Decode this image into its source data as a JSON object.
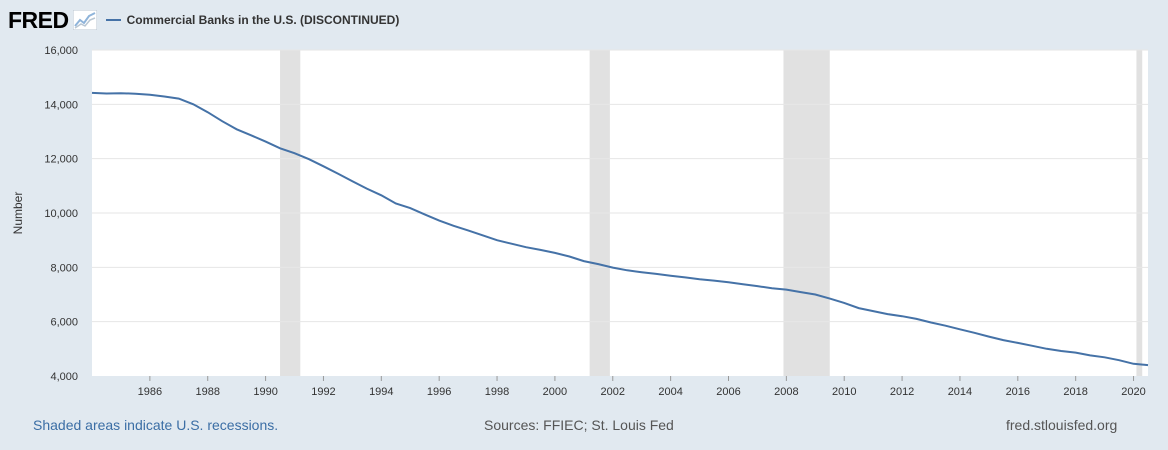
{
  "header": {
    "logo_text": "FRED",
    "legend_label": "Commercial Banks in the U.S. (DISCONTINUED)"
  },
  "footer": {
    "left": "Shaded areas indicate U.S. recessions.",
    "mid": "Sources: FFIEC; St. Louis Fed",
    "right": "fred.stlouisfed.org"
  },
  "colors": {
    "line": "#4572a7",
    "recession": "#e1e1e1",
    "background": "#e1e9f0",
    "plot": "#ffffff",
    "grid": "#e6e6e6"
  },
  "chart_data": {
    "type": "line",
    "title": "",
    "xlabel": "",
    "ylabel": "Number",
    "xlim": [
      1984.0,
      2020.5
    ],
    "ylim": [
      4000,
      16000
    ],
    "yticks": [
      4000,
      6000,
      8000,
      10000,
      12000,
      14000,
      16000
    ],
    "ytick_labels": [
      "4,000",
      "6,000",
      "8,000",
      "10,000",
      "12,000",
      "14,000",
      "16,000"
    ],
    "xticks": [
      1986,
      1988,
      1990,
      1992,
      1994,
      1996,
      1998,
      2000,
      2002,
      2004,
      2006,
      2008,
      2010,
      2012,
      2014,
      2016,
      2018,
      2020
    ],
    "xtick_labels": [
      "1986",
      "1988",
      "1990",
      "1992",
      "1994",
      "1996",
      "1998",
      "2000",
      "2002",
      "2004",
      "2006",
      "2008",
      "2010",
      "2012",
      "2014",
      "2016",
      "2018",
      "2020"
    ],
    "grid": "horizontal",
    "legend": "top-left",
    "recessions": [
      {
        "start": 1990.5,
        "end": 1991.2
      },
      {
        "start": 2001.2,
        "end": 2001.9
      },
      {
        "start": 2007.9,
        "end": 2009.5
      },
      {
        "start": 2020.1,
        "end": 2020.3
      }
    ],
    "series": [
      {
        "name": "Commercial Banks in the U.S. (DISCONTINUED)",
        "x": [
          1984.0,
          1984.5,
          1985.0,
          1985.5,
          1986.0,
          1986.5,
          1987.0,
          1987.5,
          1988.0,
          1988.5,
          1989.0,
          1989.5,
          1990.0,
          1990.5,
          1991.0,
          1991.5,
          1992.0,
          1992.5,
          1993.0,
          1993.5,
          1994.0,
          1994.5,
          1995.0,
          1995.5,
          1996.0,
          1996.5,
          1997.0,
          1997.5,
          1998.0,
          1998.5,
          1999.0,
          1999.5,
          2000.0,
          2000.5,
          2001.0,
          2001.5,
          2002.0,
          2002.5,
          2003.0,
          2003.5,
          2004.0,
          2004.5,
          2005.0,
          2005.5,
          2006.0,
          2006.5,
          2007.0,
          2007.5,
          2008.0,
          2008.5,
          2009.0,
          2009.5,
          2010.0,
          2010.5,
          2011.0,
          2011.5,
          2012.0,
          2012.5,
          2013.0,
          2013.5,
          2014.0,
          2014.5,
          2015.0,
          2015.5,
          2016.0,
          2016.5,
          2017.0,
          2017.5,
          2018.0,
          2018.5,
          2019.0,
          2019.5,
          2020.0,
          2020.5
        ],
        "values": [
          14420,
          14400,
          14410,
          14390,
          14350,
          14290,
          14210,
          14000,
          13710,
          13380,
          13080,
          12860,
          12630,
          12380,
          12200,
          11980,
          11720,
          11450,
          11170,
          10900,
          10650,
          10350,
          10180,
          9950,
          9720,
          9530,
          9360,
          9180,
          9000,
          8870,
          8740,
          8640,
          8530,
          8400,
          8230,
          8120,
          7990,
          7890,
          7820,
          7760,
          7690,
          7630,
          7560,
          7510,
          7450,
          7380,
          7310,
          7230,
          7180,
          7090,
          7000,
          6850,
          6690,
          6500,
          6390,
          6280,
          6200,
          6100,
          5970,
          5850,
          5720,
          5590,
          5450,
          5320,
          5220,
          5110,
          5000,
          4920,
          4860,
          4760,
          4690,
          4580,
          4450,
          4400
        ]
      }
    ]
  }
}
